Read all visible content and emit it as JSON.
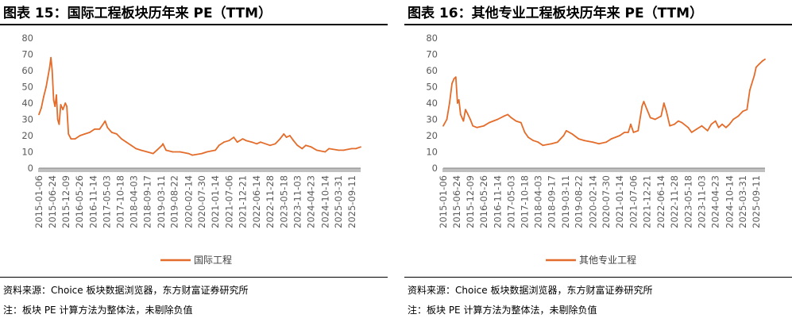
{
  "panels": [
    {
      "title": "图表 15：国际工程板块历年来 PE（TTM）",
      "source": "资料来源：Choice 板块数据浏览器，东方财富证券研究所",
      "note": "注：板块 PE 计算方法为整体法，未剔除负值",
      "chart_data": {
        "type": "line",
        "title": "",
        "xlabel": "",
        "ylabel": "",
        "ylim": [
          0,
          80
        ],
        "yticks": [
          0,
          10,
          20,
          30,
          40,
          50,
          60,
          70,
          80
        ],
        "xlim": [
          "2015-01-06",
          "2025-12-31"
        ],
        "xtick_labels": [
          "2015-01-06",
          "2015-06-24",
          "2015-12-09",
          "2016-05-26",
          "2016-11-14",
          "2017-05-03",
          "2017-10-18",
          "2018-04-03",
          "2018-09-17",
          "2019-03-11",
          "2019-08-22",
          "2020-02-14",
          "2020-07-30",
          "2021-01-14",
          "2021-07-06",
          "2021-12-21",
          "2022-06-14",
          "2022-11-28",
          "2023-05-18",
          "2023-11-03",
          "2024-04-23",
          "2024-10-14",
          "2025-03-31",
          "2025-09-11"
        ],
        "legend_position": "bottom",
        "grid": false,
        "color": "#e46c2a",
        "series": [
          {
            "name": "国际工程",
            "points": [
              [
                "2015-01-06",
                33
              ],
              [
                "2015-02-05",
                37
              ],
              [
                "2015-03-06",
                44
              ],
              [
                "2015-04-06",
                50
              ],
              [
                "2015-04-28",
                56
              ],
              [
                "2015-05-20",
                62
              ],
              [
                "2015-06-05",
                68
              ],
              [
                "2015-06-20",
                60
              ],
              [
                "2015-07-08",
                42
              ],
              [
                "2015-07-25",
                38
              ],
              [
                "2015-08-12",
                45
              ],
              [
                "2015-08-28",
                30
              ],
              [
                "2015-09-15",
                27
              ],
              [
                "2015-10-05",
                39
              ],
              [
                "2015-11-01",
                36
              ],
              [
                "2015-12-01",
                40
              ],
              [
                "2015-12-20",
                38
              ],
              [
                "2016-01-10",
                21
              ],
              [
                "2016-02-10",
                18
              ],
              [
                "2016-04-01",
                18
              ],
              [
                "2016-06-01",
                20
              ],
              [
                "2016-08-01",
                21
              ],
              [
                "2016-10-01",
                22
              ],
              [
                "2016-12-01",
                24
              ],
              [
                "2017-02-01",
                24
              ],
              [
                "2017-03-15",
                27
              ],
              [
                "2017-04-10",
                29
              ],
              [
                "2017-05-10",
                25
              ],
              [
                "2017-07-01",
                22
              ],
              [
                "2017-09-01",
                21
              ],
              [
                "2017-11-01",
                18
              ],
              [
                "2018-01-01",
                16
              ],
              [
                "2018-03-01",
                14
              ],
              [
                "2018-05-01",
                12
              ],
              [
                "2018-07-01",
                11
              ],
              [
                "2018-09-17",
                10
              ],
              [
                "2018-12-01",
                9
              ],
              [
                "2019-01-15",
                11
              ],
              [
                "2019-03-20",
                14
              ],
              [
                "2019-04-01",
                15
              ],
              [
                "2019-05-10",
                11
              ],
              [
                "2019-08-01",
                10
              ],
              [
                "2019-11-01",
                10
              ],
              [
                "2020-02-14",
                9
              ],
              [
                "2020-04-01",
                8
              ],
              [
                "2020-07-30",
                9
              ],
              [
                "2020-10-01",
                10
              ],
              [
                "2021-01-14",
                11
              ],
              [
                "2021-03-01",
                14
              ],
              [
                "2021-05-01",
                16
              ],
              [
                "2021-07-06",
                17
              ],
              [
                "2021-09-01",
                19
              ],
              [
                "2021-10-15",
                16
              ],
              [
                "2021-12-21",
                18
              ],
              [
                "2022-02-01",
                17
              ],
              [
                "2022-04-15",
                16
              ],
              [
                "2022-06-14",
                15
              ],
              [
                "2022-08-01",
                16
              ],
              [
                "2022-11-28",
                14
              ],
              [
                "2023-02-01",
                15
              ],
              [
                "2023-04-01",
                18
              ],
              [
                "2023-05-18",
                21
              ],
              [
                "2023-06-20",
                19
              ],
              [
                "2023-08-01",
                20
              ],
              [
                "2023-09-15",
                17
              ],
              [
                "2023-11-03",
                14
              ],
              [
                "2024-01-01",
                12
              ],
              [
                "2024-02-15",
                14
              ],
              [
                "2024-04-23",
                13
              ],
              [
                "2024-07-01",
                11
              ],
              [
                "2024-10-14",
                10
              ],
              [
                "2024-12-01",
                12
              ],
              [
                "2025-03-31",
                11
              ],
              [
                "2025-06-01",
                11
              ],
              [
                "2025-09-11",
                12
              ],
              [
                "2025-11-01",
                12
              ],
              [
                "2025-12-31",
                13
              ]
            ]
          }
        ]
      }
    },
    {
      "title": "图表 16：其他专业工程板块历年来 PE（TTM）",
      "source": "资料来源：Choice 板块数据浏览器，东方财富证券研究所",
      "note": "注：板块 PE 计算方法为整体法，未剔除负值",
      "chart_data": {
        "type": "line",
        "title": "",
        "xlabel": "",
        "ylabel": "",
        "ylim": [
          0,
          80
        ],
        "yticks": [
          0,
          10,
          20,
          30,
          40,
          50,
          60,
          70,
          80
        ],
        "xlim": [
          "2015-01-06",
          "2025-12-31"
        ],
        "xtick_labels": [
          "2015-01-06",
          "2015-06-24",
          "2015-12-09",
          "2016-05-26",
          "2016-11-14",
          "2017-05-03",
          "2017-10-18",
          "2018-04-03",
          "2018-09-17",
          "2019-03-11",
          "2019-08-22",
          "2020-02-14",
          "2020-07-30",
          "2021-01-14",
          "2021-07-06",
          "2021-12-21",
          "2022-06-14",
          "2022-11-28",
          "2023-05-18",
          "2023-11-03",
          "2024-04-23",
          "2024-10-14",
          "2025-03-31",
          "2025-09-11"
        ],
        "legend_position": "bottom",
        "grid": false,
        "color": "#e46c2a",
        "series": [
          {
            "name": "其他专业工程",
            "points": [
              [
                "2015-01-06",
                26
              ],
              [
                "2015-02-20",
                30
              ],
              [
                "2015-03-25",
                40
              ],
              [
                "2015-04-25",
                52
              ],
              [
                "2015-05-20",
                55
              ],
              [
                "2015-06-12",
                56
              ],
              [
                "2015-07-02",
                40
              ],
              [
                "2015-07-20",
                42
              ],
              [
                "2015-08-10",
                33
              ],
              [
                "2015-09-15",
                29
              ],
              [
                "2015-10-10",
                36
              ],
              [
                "2015-11-10",
                33
              ],
              [
                "2015-12-09",
                30
              ],
              [
                "2016-01-10",
                26
              ],
              [
                "2016-03-01",
                25
              ],
              [
                "2016-05-26",
                26
              ],
              [
                "2016-08-01",
                28
              ],
              [
                "2016-11-14",
                30
              ],
              [
                "2017-02-01",
                32
              ],
              [
                "2017-03-20",
                33
              ],
              [
                "2017-05-03",
                31
              ],
              [
                "2017-07-01",
                29
              ],
              [
                "2017-09-01",
                28
              ],
              [
                "2017-10-18",
                22
              ],
              [
                "2017-12-01",
                19
              ],
              [
                "2018-02-01",
                17
              ],
              [
                "2018-04-03",
                16
              ],
              [
                "2018-06-01",
                14
              ],
              [
                "2018-09-17",
                15
              ],
              [
                "2018-12-01",
                16
              ],
              [
                "2019-02-15",
                20
              ],
              [
                "2019-03-20",
                23
              ],
              [
                "2019-06-01",
                21
              ],
              [
                "2019-08-22",
                18
              ],
              [
                "2019-11-01",
                17
              ],
              [
                "2020-02-14",
                16
              ],
              [
                "2020-05-01",
                15
              ],
              [
                "2020-07-30",
                16
              ],
              [
                "2020-10-01",
                18
              ],
              [
                "2021-01-14",
                20
              ],
              [
                "2021-03-15",
                22
              ],
              [
                "2021-05-01",
                22
              ],
              [
                "2021-06-01",
                27
              ],
              [
                "2021-07-06",
                22
              ],
              [
                "2021-09-01",
                23
              ],
              [
                "2021-10-20",
                38
              ],
              [
                "2021-11-10",
                41
              ],
              [
                "2021-12-21",
                36
              ],
              [
                "2022-02-01",
                31
              ],
              [
                "2022-04-01",
                30
              ],
              [
                "2022-06-14",
                32
              ],
              [
                "2022-07-20",
                40
              ],
              [
                "2022-08-20",
                35
              ],
              [
                "2022-10-01",
                26
              ],
              [
                "2022-11-28",
                27
              ],
              [
                "2023-01-15",
                29
              ],
              [
                "2023-03-01",
                28
              ],
              [
                "2023-05-18",
                25
              ],
              [
                "2023-07-01",
                22
              ],
              [
                "2023-09-01",
                24
              ],
              [
                "2023-11-03",
                26
              ],
              [
                "2024-01-15",
                23
              ],
              [
                "2024-03-01",
                27
              ],
              [
                "2024-04-23",
                29
              ],
              [
                "2024-06-01",
                25
              ],
              [
                "2024-07-15",
                27
              ],
              [
                "2024-09-01",
                25
              ],
              [
                "2024-10-14",
                27
              ],
              [
                "2024-12-01",
                30
              ],
              [
                "2025-02-01",
                32
              ],
              [
                "2025-03-31",
                35
              ],
              [
                "2025-05-20",
                36
              ],
              [
                "2025-06-25",
                48
              ],
              [
                "2025-07-20",
                52
              ],
              [
                "2025-08-20",
                57
              ],
              [
                "2025-09-11",
                62
              ],
              [
                "2025-10-20",
                64
              ],
              [
                "2025-12-01",
                66
              ],
              [
                "2025-12-31",
                67
              ]
            ]
          }
        ]
      }
    }
  ]
}
